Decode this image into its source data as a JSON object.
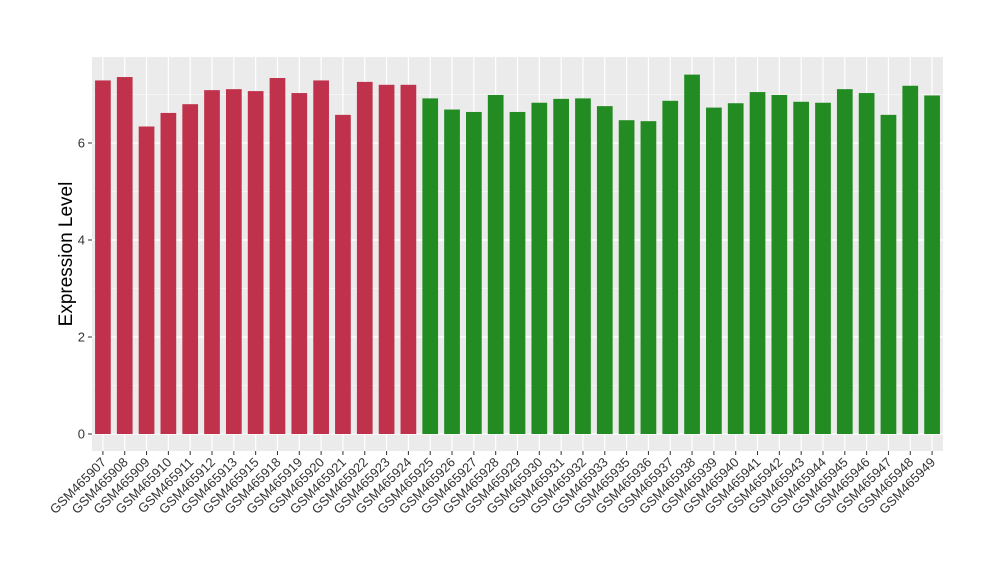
{
  "chart_data": {
    "type": "bar",
    "title": "",
    "xlabel": "",
    "ylabel": "Expression Level",
    "ylim": [
      0,
      7.7
    ],
    "yticks": [
      0,
      2,
      4,
      6
    ],
    "grid": true,
    "panel_background": "#ebebeb",
    "grid_color": "#ffffff",
    "categories": [
      "GSM465907",
      "GSM465908",
      "GSM465909",
      "GSM465910",
      "GSM465911",
      "GSM465912",
      "GSM465913",
      "GSM465915",
      "GSM465918",
      "GSM465919",
      "GSM465920",
      "GSM465921",
      "GSM465922",
      "GSM465923",
      "GSM465924",
      "GSM465925",
      "GSM465926",
      "GSM465927",
      "GSM465928",
      "GSM465929",
      "GSM465930",
      "GSM465931",
      "GSM465932",
      "GSM465933",
      "GSM465935",
      "GSM465936",
      "GSM465937",
      "GSM465938",
      "GSM465939",
      "GSM465940",
      "GSM465941",
      "GSM465942",
      "GSM465943",
      "GSM465944",
      "GSM465945",
      "GSM465946",
      "GSM465947",
      "GSM465948",
      "GSM465949"
    ],
    "values": [
      7.29,
      7.36,
      6.34,
      6.62,
      6.8,
      7.09,
      7.11,
      7.07,
      7.34,
      7.03,
      7.29,
      6.58,
      7.26,
      7.2,
      7.2,
      6.92,
      6.69,
      6.64,
      6.99,
      6.64,
      6.83,
      6.91,
      6.92,
      6.76,
      6.47,
      6.45,
      6.87,
      7.41,
      6.73,
      6.82,
      7.05,
      6.99,
      6.85,
      6.83,
      7.11,
      7.03,
      6.58,
      7.18,
      6.98
    ],
    "colors": [
      "#c0324b",
      "#c0324b",
      "#c0324b",
      "#c0324b",
      "#c0324b",
      "#c0324b",
      "#c0324b",
      "#c0324b",
      "#c0324b",
      "#c0324b",
      "#c0324b",
      "#c0324b",
      "#c0324b",
      "#c0324b",
      "#c0324b",
      "#228b22",
      "#228b22",
      "#228b22",
      "#228b22",
      "#228b22",
      "#228b22",
      "#228b22",
      "#228b22",
      "#228b22",
      "#228b22",
      "#228b22",
      "#228b22",
      "#228b22",
      "#228b22",
      "#228b22",
      "#228b22",
      "#228b22",
      "#228b22",
      "#228b22",
      "#228b22",
      "#228b22",
      "#228b22",
      "#228b22",
      "#228b22"
    ]
  }
}
